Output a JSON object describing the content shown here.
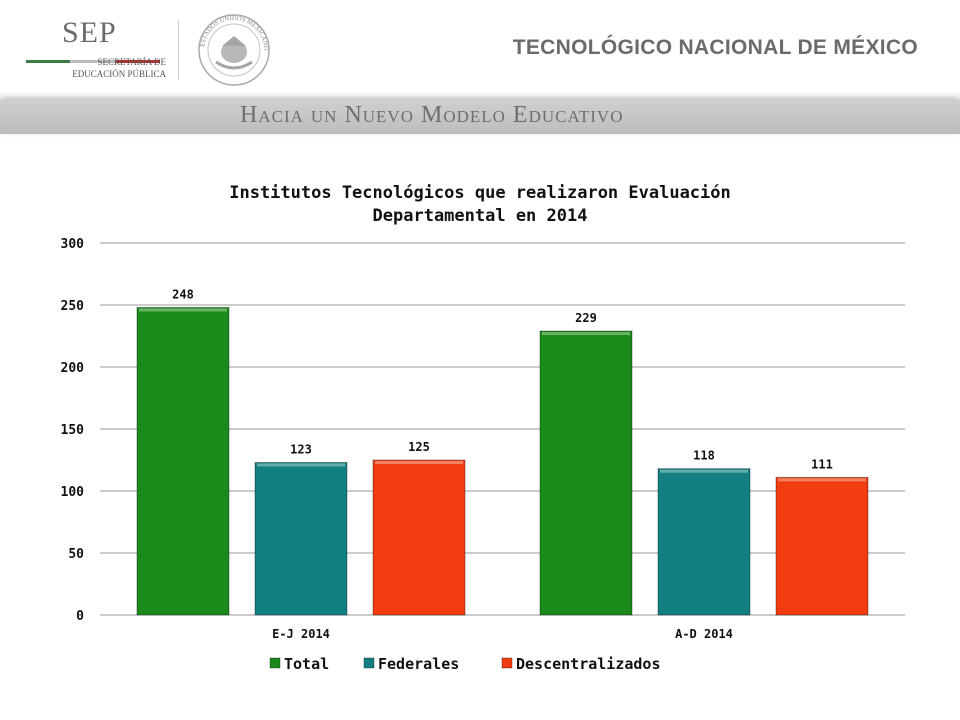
{
  "header": {
    "sep_logo_text": "SEP",
    "sep_subtitle_line1": "SECRETARÍA DE",
    "sep_subtitle_line2": "EDUCACIÓN PÚBLICA",
    "seal_text": "ESTADOS UNIDOS MEXICANOS",
    "institution": "TECNOLÓGICO NACIONAL DE MÉXICO"
  },
  "banner": {
    "text": "Hacia un Nuevo Modelo Educativo"
  },
  "colors": {
    "total": "#1a8a1a",
    "federales": "#128080",
    "descentralizados": "#f03c10",
    "grid": "#9a9a9a",
    "banner": "#c4c4c4",
    "sep_green": "#3a7d44",
    "sep_red": "#b03030"
  },
  "chart_data": {
    "type": "bar",
    "title": "Institutos Tecnológicos que realizaron Evaluación Departamental en 2014",
    "title_line1": "Institutos Tecnológicos que realizaron Evaluación",
    "title_line2": "Departamental en 2014",
    "categories": [
      "E-J 2014",
      "A-D 2014"
    ],
    "series": [
      {
        "name": "Total",
        "values": [
          248,
          229
        ]
      },
      {
        "name": "Federales",
        "values": [
          123,
          118
        ]
      },
      {
        "name": "Descentralizados",
        "values": [
          125,
          111
        ]
      }
    ],
    "ylim": [
      0,
      300
    ],
    "yticks": [
      0,
      50,
      100,
      150,
      200,
      250,
      300
    ],
    "grid": true,
    "legend": "bottom-center",
    "data_labels": true
  }
}
